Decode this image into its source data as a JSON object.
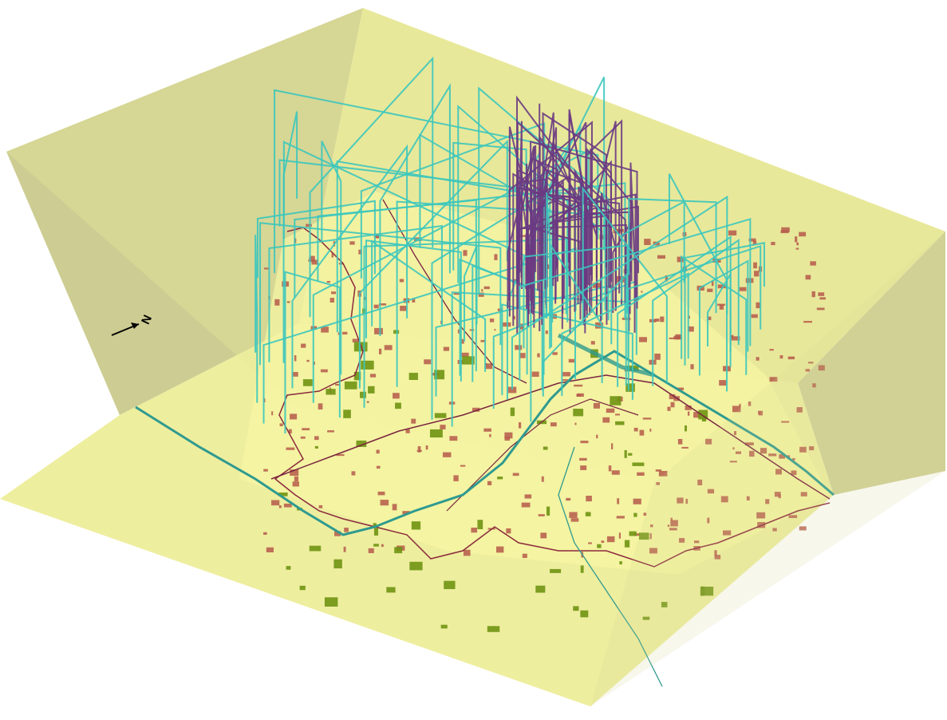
{
  "north_arrow": {
    "label": "N",
    "icon": "north-arrow-icon"
  },
  "colors": {
    "box_top": "#e9e99a",
    "box_left": "#cdcd93",
    "box_right": "#d1d196",
    "box_base": "#eeee9f",
    "box_floor": "#f7f7a4",
    "boundary": "#8b2a3d",
    "road": "#7a2340",
    "water": "#2f9a8f",
    "parks": "#6f9412",
    "urban": "#b5594a",
    "traj_cyan": "#3cc7bd",
    "traj_purple": "#6a3a82"
  },
  "layers": [
    {
      "name": "space-time-trajectories-group-a",
      "color": "traj_cyan"
    },
    {
      "name": "space-time-trajectories-group-b",
      "color": "traj_purple"
    },
    {
      "name": "city-boundary",
      "color": "boundary"
    },
    {
      "name": "rivers",
      "color": "water"
    },
    {
      "name": "parks",
      "color": "parks"
    },
    {
      "name": "land-use-patches",
      "color": "urban"
    }
  ]
}
